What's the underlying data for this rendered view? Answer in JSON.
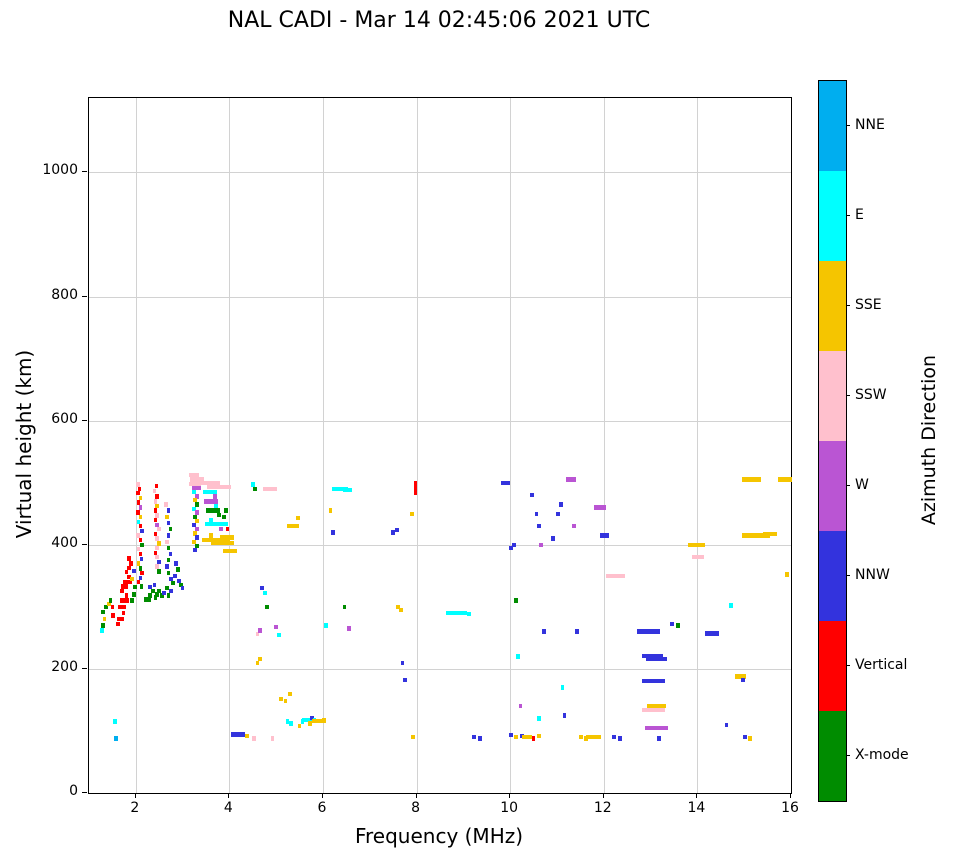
{
  "title": "NAL CADI - Mar 14 02:45:06 2021 UTC",
  "chart_data": {
    "type": "scatter",
    "title": "NAL CADI - Mar 14 02:45:06 2021 UTC",
    "xlabel": "Frequency (MHz)",
    "ylabel": "Virtual height (km)",
    "xlim": [
      1,
      16
    ],
    "ylim": [
      0,
      1120
    ],
    "x_ticks": [
      2,
      4,
      6,
      8,
      10,
      12,
      14,
      16
    ],
    "y_ticks": [
      0,
      200,
      400,
      600,
      800,
      1000
    ],
    "grid": true,
    "legend_position": "right-colorbar",
    "legend_title": "Azimuth Direction",
    "categories": [
      {
        "label": "NNE",
        "color": "#00AEEF"
      },
      {
        "label": "E",
        "color": "#00FFFF"
      },
      {
        "label": "SSE",
        "color": "#F5C500"
      },
      {
        "label": "SSW",
        "color": "#FFC0CD"
      },
      {
        "label": "W",
        "color": "#BA55D3"
      },
      {
        "label": "NNW",
        "color": "#3333DD"
      },
      {
        "label": "Vertical",
        "color": "#FF0000"
      },
      {
        "label": "X-mode",
        "color": "#008C00"
      }
    ],
    "point_format": [
      "freq_MHz",
      "height_km",
      "category_index",
      "width_MHz_optional",
      "thickness_km_optional"
    ],
    "point_defaults": {
      "width_MHz": 0.08,
      "thickness_km": 7
    },
    "points": [
      [
        1.28,
        262,
        1
      ],
      [
        1.3,
        270,
        7
      ],
      [
        1.33,
        280,
        2
      ],
      [
        1.3,
        292,
        7
      ],
      [
        1.36,
        300,
        7
      ],
      [
        1.42,
        305,
        2
      ],
      [
        1.46,
        310,
        7
      ],
      [
        1.5,
        300,
        6
      ],
      [
        1.52,
        286,
        6
      ],
      [
        1.55,
        115,
        1
      ],
      [
        1.58,
        88,
        0
      ],
      [
        1.62,
        272,
        6
      ],
      [
        1.68,
        280,
        6,
        0.15
      ],
      [
        1.74,
        290,
        6
      ],
      [
        1.7,
        300,
        6,
        0.18
      ],
      [
        1.76,
        310,
        6,
        0.2
      ],
      [
        1.8,
        318,
        6
      ],
      [
        1.7,
        326,
        6
      ],
      [
        1.76,
        333,
        6,
        0.15
      ],
      [
        1.82,
        340,
        6,
        0.2
      ],
      [
        1.86,
        348,
        6
      ],
      [
        1.8,
        356,
        6
      ],
      [
        1.86,
        363,
        6
      ],
      [
        1.9,
        370,
        6
      ],
      [
        1.86,
        378,
        6
      ],
      [
        1.92,
        310,
        7
      ],
      [
        1.96,
        320,
        7
      ],
      [
        1.92,
        345,
        2
      ],
      [
        1.96,
        358,
        5
      ],
      [
        1.98,
        332,
        7
      ],
      [
        2.04,
        497,
        3
      ],
      [
        2.08,
        490,
        6
      ],
      [
        2.04,
        483,
        6
      ],
      [
        2.1,
        475,
        2
      ],
      [
        2.06,
        468,
        6
      ],
      [
        2.1,
        460,
        4
      ],
      [
        2.04,
        452,
        6
      ],
      [
        2.1,
        445,
        2
      ],
      [
        2.06,
        437,
        1
      ],
      [
        2.1,
        430,
        6
      ],
      [
        2.14,
        422,
        5
      ],
      [
        2.04,
        415,
        3
      ],
      [
        2.1,
        408,
        6
      ],
      [
        2.14,
        400,
        7
      ],
      [
        2.06,
        393,
        3
      ],
      [
        2.1,
        385,
        6
      ],
      [
        2.12,
        377,
        5
      ],
      [
        2.06,
        370,
        2
      ],
      [
        2.1,
        362,
        7
      ],
      [
        2.14,
        355,
        6
      ],
      [
        2.1,
        347,
        5
      ],
      [
        2.06,
        340,
        6
      ],
      [
        2.12,
        333,
        7
      ],
      [
        2.24,
        312,
        7,
        0.15
      ],
      [
        2.3,
        318,
        7
      ],
      [
        2.36,
        325,
        7
      ],
      [
        2.42,
        315,
        7
      ],
      [
        2.46,
        320,
        7
      ],
      [
        2.3,
        332,
        5
      ],
      [
        2.4,
        335,
        5
      ],
      [
        2.5,
        325,
        7
      ],
      [
        2.56,
        318,
        7
      ],
      [
        2.6,
        322,
        5
      ],
      [
        2.66,
        330,
        7
      ],
      [
        2.7,
        318,
        7
      ],
      [
        2.76,
        325,
        5
      ],
      [
        2.44,
        495,
        6
      ],
      [
        2.4,
        487,
        3
      ],
      [
        2.46,
        478,
        6
      ],
      [
        2.42,
        470,
        3
      ],
      [
        2.46,
        462,
        2
      ],
      [
        2.42,
        455,
        6
      ],
      [
        2.46,
        447,
        3
      ],
      [
        2.42,
        440,
        6
      ],
      [
        2.46,
        432,
        4
      ],
      [
        2.5,
        425,
        3
      ],
      [
        2.42,
        417,
        6
      ],
      [
        2.46,
        410,
        3
      ],
      [
        2.5,
        402,
        2
      ],
      [
        2.46,
        395,
        3
      ],
      [
        2.42,
        387,
        6
      ],
      [
        2.46,
        380,
        3
      ],
      [
        2.5,
        372,
        5
      ],
      [
        2.46,
        365,
        3
      ],
      [
        2.5,
        357,
        7
      ],
      [
        2.64,
        465,
        3
      ],
      [
        2.7,
        455,
        5
      ],
      [
        2.66,
        445,
        2
      ],
      [
        2.7,
        435,
        5
      ],
      [
        2.74,
        425,
        7
      ],
      [
        2.7,
        415,
        5
      ],
      [
        2.66,
        405,
        3
      ],
      [
        2.7,
        395,
        7
      ],
      [
        2.74,
        385,
        5
      ],
      [
        2.7,
        375,
        7
      ],
      [
        2.66,
        365,
        5
      ],
      [
        2.7,
        355,
        7
      ],
      [
        2.76,
        345,
        5
      ],
      [
        2.8,
        338,
        7
      ],
      [
        2.84,
        350,
        5
      ],
      [
        2.9,
        360,
        7
      ],
      [
        2.86,
        370,
        5
      ],
      [
        2.92,
        342,
        5
      ],
      [
        2.96,
        335,
        7
      ],
      [
        3.0,
        330,
        5
      ],
      [
        3.24,
        512,
        3,
        0.2
      ],
      [
        3.3,
        505,
        3,
        0.3
      ],
      [
        3.26,
        498,
        3,
        0.25
      ],
      [
        3.3,
        492,
        4,
        0.2
      ],
      [
        3.24,
        485,
        1
      ],
      [
        3.3,
        478,
        4
      ],
      [
        3.26,
        472,
        2
      ],
      [
        3.3,
        465,
        7
      ],
      [
        3.24,
        458,
        1
      ],
      [
        3.3,
        452,
        4
      ],
      [
        3.26,
        445,
        7
      ],
      [
        3.3,
        438,
        2
      ],
      [
        3.24,
        432,
        5
      ],
      [
        3.3,
        425,
        4
      ],
      [
        3.26,
        418,
        2
      ],
      [
        3.3,
        412,
        5
      ],
      [
        3.24,
        405,
        2
      ],
      [
        3.3,
        398,
        7
      ],
      [
        3.26,
        392,
        5
      ],
      [
        3.6,
        500,
        3,
        0.4
      ],
      [
        3.78,
        493,
        3,
        0.5
      ],
      [
        3.58,
        485,
        1,
        0.3
      ],
      [
        3.7,
        478,
        4
      ],
      [
        3.6,
        470,
        4,
        0.3
      ],
      [
        3.72,
        462,
        1
      ],
      [
        3.64,
        455,
        7,
        0.3
      ],
      [
        3.78,
        448,
        7
      ],
      [
        3.6,
        440,
        1
      ],
      [
        3.72,
        433,
        1,
        0.5
      ],
      [
        3.82,
        425,
        4
      ],
      [
        3.6,
        415,
        2
      ],
      [
        3.72,
        408,
        2,
        0.6
      ],
      [
        3.85,
        403,
        2,
        0.5
      ],
      [
        3.95,
        412,
        2,
        0.3
      ],
      [
        3.88,
        445,
        7
      ],
      [
        3.92,
        455,
        7
      ],
      [
        4.02,
        390,
        2,
        0.3
      ],
      [
        3.96,
        425,
        6
      ],
      [
        4.18,
        94,
        5,
        0.3
      ],
      [
        4.38,
        92,
        2
      ],
      [
        4.52,
        88,
        3
      ],
      [
        4.6,
        210,
        2
      ],
      [
        4.66,
        216,
        2
      ],
      [
        4.6,
        256,
        3
      ],
      [
        4.66,
        262,
        4
      ],
      [
        4.54,
        490,
        7
      ],
      [
        4.5,
        497,
        1
      ],
      [
        4.7,
        330,
        5
      ],
      [
        4.76,
        322,
        1
      ],
      [
        4.8,
        300,
        7
      ],
      [
        4.86,
        490,
        3,
        0.3
      ],
      [
        4.92,
        88,
        3
      ],
      [
        5.0,
        268,
        4
      ],
      [
        5.06,
        255,
        1
      ],
      [
        5.1,
        152,
        2
      ],
      [
        5.2,
        148,
        2
      ],
      [
        5.24,
        115,
        1
      ],
      [
        5.32,
        112,
        1
      ],
      [
        5.3,
        160,
        2
      ],
      [
        5.36,
        430,
        2,
        0.25
      ],
      [
        5.46,
        443,
        2
      ],
      [
        5.5,
        108,
        2
      ],
      [
        5.56,
        115,
        1
      ],
      [
        5.66,
        118,
        1,
        0.2
      ],
      [
        5.72,
        112,
        2
      ],
      [
        5.76,
        121,
        5
      ],
      [
        5.82,
        118,
        1
      ],
      [
        5.92,
        116,
        2,
        0.3
      ],
      [
        6.02,
        118,
        2
      ],
      [
        6.06,
        270,
        1
      ],
      [
        6.16,
        455,
        2
      ],
      [
        6.22,
        420,
        5
      ],
      [
        6.36,
        490,
        1,
        0.35
      ],
      [
        6.52,
        488,
        1,
        0.2
      ],
      [
        6.46,
        300,
        7
      ],
      [
        6.56,
        265,
        4
      ],
      [
        7.5,
        420,
        5
      ],
      [
        7.58,
        424,
        5
      ],
      [
        7.6,
        300,
        2
      ],
      [
        7.66,
        295,
        2
      ],
      [
        7.7,
        210,
        5
      ],
      [
        7.76,
        182,
        5
      ],
      [
        7.9,
        450,
        2
      ],
      [
        7.98,
        492,
        6,
        0.06,
        22
      ],
      [
        7.92,
        90,
        2
      ],
      [
        8.85,
        290,
        1,
        0.45
      ],
      [
        9.12,
        288,
        1
      ],
      [
        9.22,
        90,
        5
      ],
      [
        9.36,
        88,
        5
      ],
      [
        9.9,
        500,
        5,
        0.2
      ],
      [
        10.02,
        395,
        5
      ],
      [
        10.08,
        400,
        5
      ],
      [
        10.12,
        310,
        7
      ],
      [
        10.16,
        220,
        1
      ],
      [
        10.22,
        140,
        4
      ],
      [
        10.02,
        93,
        5
      ],
      [
        10.12,
        90,
        2
      ],
      [
        10.26,
        92,
        5
      ],
      [
        10.36,
        90,
        2,
        0.2
      ],
      [
        10.5,
        88,
        6
      ],
      [
        10.62,
        92,
        2
      ],
      [
        10.46,
        480,
        5
      ],
      [
        10.56,
        450,
        5
      ],
      [
        10.62,
        430,
        5
      ],
      [
        10.66,
        400,
        4
      ],
      [
        10.62,
        120,
        1
      ],
      [
        10.72,
        260,
        5
      ],
      [
        10.92,
        410,
        5
      ],
      [
        11.02,
        450,
        5
      ],
      [
        11.08,
        465,
        5
      ],
      [
        11.12,
        170,
        1
      ],
      [
        11.16,
        125,
        5
      ],
      [
        11.3,
        505,
        4,
        0.2
      ],
      [
        11.36,
        430,
        4
      ],
      [
        11.42,
        260,
        5
      ],
      [
        11.52,
        90,
        2
      ],
      [
        11.62,
        88,
        2
      ],
      [
        11.78,
        90,
        2,
        0.3
      ],
      [
        11.92,
        460,
        4,
        0.25
      ],
      [
        12.02,
        415,
        5,
        0.2
      ],
      [
        12.25,
        350,
        3,
        0.4
      ],
      [
        12.22,
        90,
        5
      ],
      [
        12.34,
        88,
        5
      ],
      [
        12.95,
        260,
        5,
        0.5
      ],
      [
        13.05,
        221,
        5,
        0.45
      ],
      [
        13.12,
        216,
        5,
        0.45
      ],
      [
        13.06,
        180,
        5,
        0.5
      ],
      [
        13.12,
        140,
        2,
        0.4
      ],
      [
        13.06,
        134,
        3,
        0.5
      ],
      [
        13.12,
        105,
        4,
        0.5
      ],
      [
        13.18,
        88,
        5
      ],
      [
        13.45,
        272,
        5
      ],
      [
        13.58,
        270,
        7
      ],
      [
        13.95,
        400,
        2,
        0.3
      ],
      [
        14.02,
        380,
        3,
        0.25
      ],
      [
        14.12,
        400,
        2
      ],
      [
        14.32,
        257,
        5,
        0.3
      ],
      [
        14.62,
        110,
        5
      ],
      [
        14.72,
        302,
        1
      ],
      [
        14.92,
        188,
        2,
        0.25
      ],
      [
        14.98,
        182,
        5
      ],
      [
        15.02,
        90,
        5
      ],
      [
        15.12,
        88,
        2
      ],
      [
        15.15,
        505,
        2,
        0.4
      ],
      [
        15.25,
        415,
        2,
        0.6
      ],
      [
        15.55,
        417,
        2,
        0.3
      ],
      [
        15.88,
        505,
        2,
        0.3
      ],
      [
        15.92,
        352,
        2
      ]
    ]
  }
}
